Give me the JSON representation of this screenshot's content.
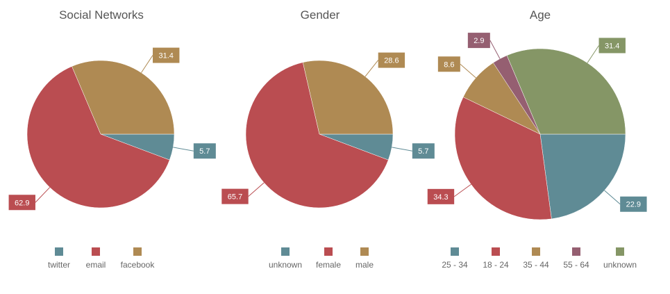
{
  "chart_data": [
    {
      "type": "pie",
      "title": "Social Networks",
      "categories": [
        "twitter",
        "email",
        "facebook"
      ],
      "values": [
        5.7,
        62.9,
        31.4
      ],
      "colors": [
        "#5f8b95",
        "#ba4d51",
        "#af8a53"
      ],
      "legend": "bottom"
    },
    {
      "type": "pie",
      "title": "Gender",
      "categories": [
        "unknown",
        "female",
        "male"
      ],
      "values": [
        5.7,
        65.7,
        28.6
      ],
      "colors": [
        "#5f8b95",
        "#ba4d51",
        "#af8a53"
      ],
      "legend": "bottom"
    },
    {
      "type": "pie",
      "title": "Age",
      "categories": [
        "25 - 34",
        "18 - 24",
        "35 - 44",
        "55 - 64",
        "unknown"
      ],
      "values": [
        22.9,
        34.3,
        8.6,
        2.9,
        31.4
      ],
      "colors": [
        "#5f8b95",
        "#ba4d51",
        "#af8a53",
        "#955f71",
        "#859666"
      ],
      "legend": "bottom"
    }
  ]
}
